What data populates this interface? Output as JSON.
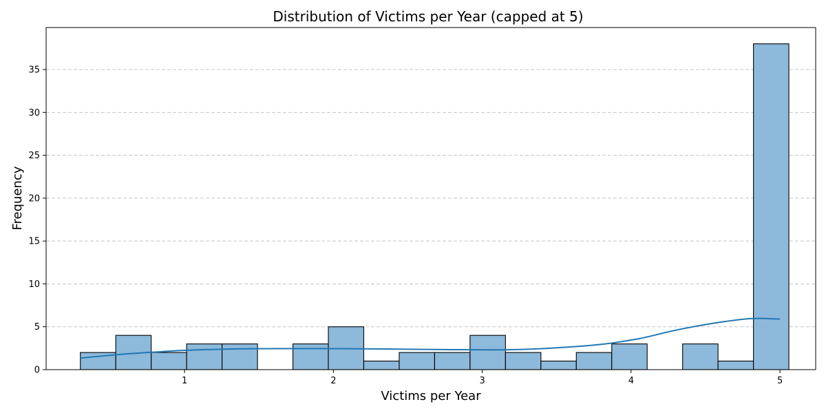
{
  "chart_data": {
    "type": "bar",
    "title": "Distribution of Victims per Year (capped at 5)",
    "xlabel": "Victims per Year",
    "ylabel": "Frequency",
    "xlim": [
      0.07,
      5.24
    ],
    "ylim": [
      0,
      39.9
    ],
    "grid": "y-dashed",
    "x_ticks": [
      "1",
      "2",
      "3",
      "4",
      "5"
    ],
    "y_ticks": [
      "0",
      "5",
      "10",
      "15",
      "20",
      "25",
      "30",
      "35"
    ],
    "bins": [
      {
        "start": 0.3,
        "end": 0.538,
        "count": 2
      },
      {
        "start": 0.538,
        "end": 0.776,
        "count": 4
      },
      {
        "start": 0.776,
        "end": 1.014,
        "count": 2
      },
      {
        "start": 1.014,
        "end": 1.252,
        "count": 3
      },
      {
        "start": 1.252,
        "end": 1.49,
        "count": 3
      },
      {
        "start": 1.49,
        "end": 1.728,
        "count": 0
      },
      {
        "start": 1.728,
        "end": 1.966,
        "count": 3
      },
      {
        "start": 1.966,
        "end": 2.204,
        "count": 5
      },
      {
        "start": 2.204,
        "end": 2.442,
        "count": 1
      },
      {
        "start": 2.442,
        "end": 2.68,
        "count": 2
      },
      {
        "start": 2.68,
        "end": 2.918,
        "count": 2
      },
      {
        "start": 2.918,
        "end": 3.156,
        "count": 4
      },
      {
        "start": 3.156,
        "end": 3.394,
        "count": 2
      },
      {
        "start": 3.394,
        "end": 3.632,
        "count": 1
      },
      {
        "start": 3.632,
        "end": 3.87,
        "count": 2
      },
      {
        "start": 3.87,
        "end": 4.108,
        "count": 3
      },
      {
        "start": 4.108,
        "end": 4.346,
        "count": 0
      },
      {
        "start": 4.346,
        "end": 4.584,
        "count": 3
      },
      {
        "start": 4.584,
        "end": 4.822,
        "count": 1
      },
      {
        "start": 4.822,
        "end": 5.06,
        "count": 38
      }
    ],
    "kde": {
      "x": [
        0.3,
        0.55,
        0.8,
        1.0,
        1.3,
        1.6,
        2.0,
        2.4,
        2.8,
        3.2,
        3.5,
        3.8,
        4.05,
        4.3,
        4.55,
        4.8,
        5.0
      ],
      "y": [
        1.35,
        1.75,
        2.05,
        2.25,
        2.4,
        2.45,
        2.45,
        2.4,
        2.33,
        2.33,
        2.55,
        2.95,
        3.6,
        4.6,
        5.4,
        5.95,
        5.9
      ]
    }
  }
}
